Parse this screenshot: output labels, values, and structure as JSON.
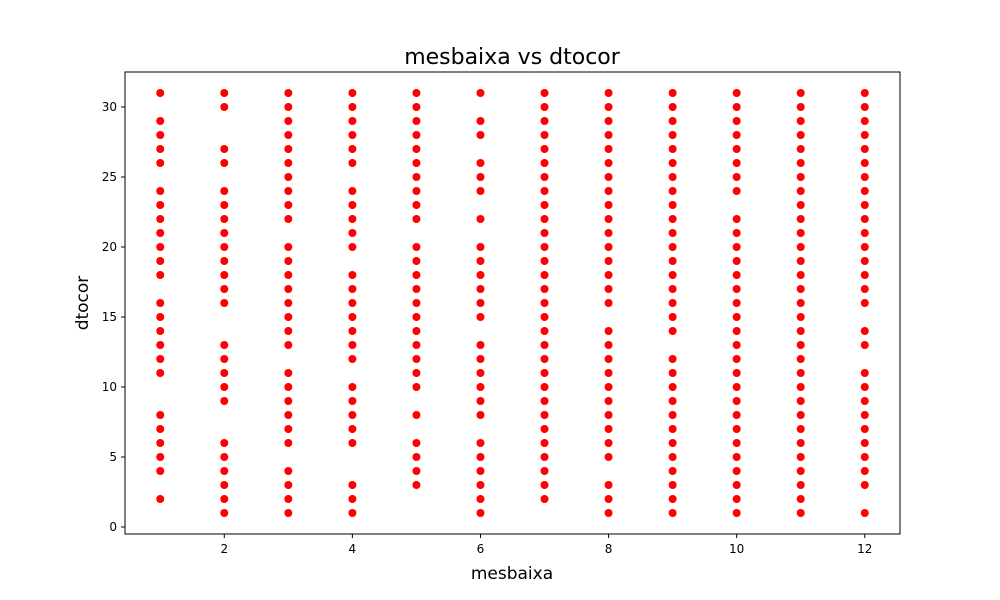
{
  "chart_data": {
    "type": "scatter",
    "title": "mesbaixa vs dtocor",
    "xlabel": "mesbaixa",
    "ylabel": "dtocor",
    "xlim": [
      0.45,
      12.55
    ],
    "ylim": [
      -0.5,
      32.5
    ],
    "xticks": [
      2,
      4,
      6,
      8,
      10,
      12
    ],
    "yticks": [
      0,
      5,
      10,
      15,
      20,
      25,
      30
    ],
    "grid": false,
    "marker_color": "#ff0000",
    "columns": [
      {
        "x": 1,
        "y": [
          2,
          4,
          5,
          6,
          7,
          8,
          11,
          12,
          13,
          14,
          15,
          16,
          18,
          19,
          20,
          21,
          22,
          23,
          24,
          26,
          27,
          28,
          29,
          31
        ]
      },
      {
        "x": 2,
        "y": [
          1,
          2,
          3,
          4,
          5,
          6,
          9,
          10,
          11,
          12,
          13,
          16,
          17,
          18,
          19,
          20,
          21,
          22,
          23,
          24,
          26,
          27,
          30,
          31
        ]
      },
      {
        "x": 3,
        "y": [
          1,
          2,
          3,
          4,
          6,
          7,
          8,
          9,
          10,
          11,
          13,
          14,
          15,
          16,
          17,
          18,
          19,
          20,
          22,
          23,
          24,
          25,
          26,
          27,
          28,
          29,
          30,
          31
        ]
      },
      {
        "x": 4,
        "y": [
          1,
          2,
          3,
          6,
          7,
          8,
          9,
          10,
          12,
          13,
          14,
          15,
          16,
          17,
          18,
          20,
          21,
          22,
          23,
          24,
          26,
          27,
          28,
          29,
          30,
          31
        ]
      },
      {
        "x": 5,
        "y": [
          3,
          4,
          5,
          6,
          8,
          10,
          11,
          12,
          13,
          14,
          15,
          16,
          17,
          18,
          19,
          20,
          22,
          23,
          24,
          25,
          26,
          27,
          28,
          29,
          30,
          31
        ]
      },
      {
        "x": 6,
        "y": [
          1,
          2,
          3,
          4,
          5,
          6,
          8,
          9,
          10,
          11,
          12,
          13,
          15,
          16,
          17,
          18,
          19,
          20,
          22,
          24,
          25,
          26,
          28,
          29,
          31
        ]
      },
      {
        "x": 7,
        "y": [
          2,
          3,
          4,
          5,
          6,
          7,
          8,
          9,
          10,
          11,
          12,
          13,
          14,
          15,
          16,
          17,
          18,
          19,
          20,
          21,
          22,
          23,
          24,
          25,
          26,
          27,
          28,
          29,
          30,
          31
        ]
      },
      {
        "x": 8,
        "y": [
          1,
          2,
          3,
          5,
          6,
          7,
          8,
          9,
          10,
          11,
          12,
          13,
          14,
          16,
          17,
          18,
          19,
          20,
          21,
          22,
          23,
          24,
          25,
          26,
          27,
          28,
          29,
          30,
          31
        ]
      },
      {
        "x": 9,
        "y": [
          1,
          2,
          3,
          4,
          5,
          6,
          7,
          8,
          9,
          10,
          11,
          12,
          14,
          15,
          16,
          17,
          18,
          19,
          20,
          21,
          22,
          23,
          24,
          25,
          26,
          27,
          28,
          29,
          30,
          31
        ]
      },
      {
        "x": 10,
        "y": [
          1,
          2,
          3,
          4,
          5,
          6,
          7,
          8,
          9,
          10,
          11,
          12,
          13,
          14,
          15,
          16,
          17,
          18,
          19,
          20,
          21,
          22,
          24,
          25,
          26,
          27,
          28,
          29,
          30,
          31
        ]
      },
      {
        "x": 11,
        "y": [
          1,
          2,
          3,
          4,
          5,
          6,
          7,
          8,
          9,
          10,
          11,
          12,
          13,
          14,
          15,
          16,
          17,
          18,
          19,
          20,
          21,
          22,
          23,
          24,
          25,
          26,
          27,
          28,
          29,
          30,
          31
        ]
      },
      {
        "x": 12,
        "y": [
          1,
          3,
          4,
          5,
          6,
          7,
          8,
          9,
          10,
          11,
          13,
          14,
          16,
          17,
          18,
          19,
          20,
          21,
          22,
          23,
          24,
          25,
          26,
          27,
          28,
          29,
          30,
          31
        ]
      }
    ]
  }
}
